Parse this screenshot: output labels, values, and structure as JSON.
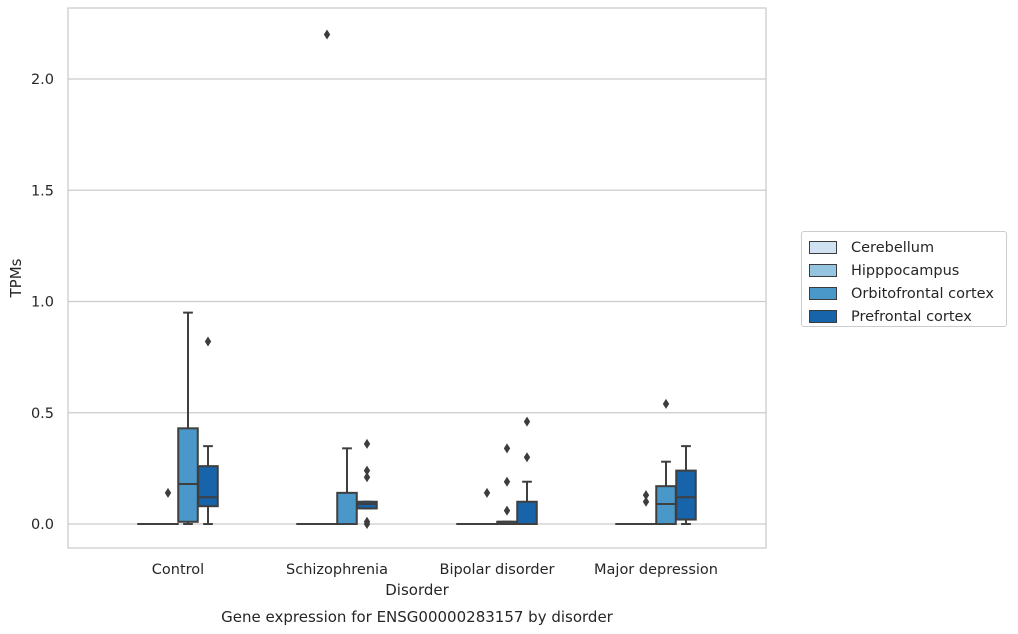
{
  "chart_data": {
    "type": "box",
    "title": "Gene expression for ENSG00000283157 by disorder",
    "xlabel": "Disorder",
    "ylabel": "TPMs",
    "ylim": [
      -0.11,
      2.33
    ],
    "yticks": [
      "0.0",
      "0.5",
      "1.0",
      "1.5",
      "2.0"
    ],
    "ytick_values": [
      0.0,
      0.5,
      1.0,
      1.5,
      2.0
    ],
    "grid": true,
    "legend_position": "right",
    "categories": [
      "Control",
      "Schizophrenia",
      "Bipolar disorder",
      "Major depression"
    ],
    "series": [
      {
        "name": "Cerebellum",
        "color": "#d0e1f2",
        "boxes": [
          {
            "min": 0.0,
            "q1": 0.0,
            "median": 0.0,
            "q3": 0.0,
            "max": 0.0,
            "outliers": []
          },
          {
            "min": 0.0,
            "q1": 0.0,
            "median": 0.0,
            "q3": 0.0,
            "max": 0.0,
            "outliers": []
          },
          {
            "min": 0.0,
            "q1": 0.0,
            "median": 0.0,
            "q3": 0.0,
            "max": 0.0,
            "outliers": []
          },
          {
            "min": 0.0,
            "q1": 0.0,
            "median": 0.0,
            "q3": 0.0,
            "max": 0.0,
            "outliers": []
          }
        ]
      },
      {
        "name": "Hipppocampus",
        "color": "#94c4df",
        "boxes": [
          {
            "min": 0.0,
            "q1": 0.0,
            "median": 0.0,
            "q3": 0.0,
            "max": 0.0,
            "outliers": [
              0.14
            ]
          },
          {
            "min": 0.0,
            "q1": 0.0,
            "median": 0.0,
            "q3": 0.0,
            "max": 0.0,
            "outliers": [
              2.2
            ]
          },
          {
            "min": 0.0,
            "q1": 0.0,
            "median": 0.0,
            "q3": 0.0,
            "max": 0.0,
            "outliers": [
              0.14
            ]
          },
          {
            "min": 0.0,
            "q1": 0.0,
            "median": 0.0,
            "q3": 0.0,
            "max": 0.0,
            "outliers": [
              0.1,
              0.13
            ]
          }
        ]
      },
      {
        "name": "Orbitofrontal cortex",
        "color": "#4a98c9",
        "boxes": [
          {
            "min": 0.0,
            "q1": 0.01,
            "median": 0.18,
            "q3": 0.43,
            "max": 0.95,
            "outliers": []
          },
          {
            "min": 0.0,
            "q1": 0.0,
            "median": 0.0,
            "q3": 0.14,
            "max": 0.34,
            "outliers": []
          },
          {
            "min": 0.0,
            "q1": 0.0,
            "median": 0.01,
            "q3": 0.01,
            "max": 0.01,
            "outliers": [
              0.06,
              0.19,
              0.34
            ]
          },
          {
            "min": 0.0,
            "q1": 0.0,
            "median": 0.09,
            "q3": 0.17,
            "max": 0.28,
            "outliers": [
              0.54
            ]
          }
        ]
      },
      {
        "name": "Prefrontal cortex",
        "color": "#1764ab",
        "boxes": [
          {
            "min": 0.0,
            "q1": 0.08,
            "median": 0.12,
            "q3": 0.26,
            "max": 0.35,
            "outliers": [
              0.82
            ]
          },
          {
            "min": 0.07,
            "q1": 0.07,
            "median": 0.09,
            "q3": 0.1,
            "max": 0.1,
            "outliers": [
              0.0,
              0.01,
              0.21,
              0.24,
              0.36
            ]
          },
          {
            "min": 0.0,
            "q1": 0.0,
            "median": 0.0,
            "q3": 0.1,
            "max": 0.19,
            "outliers": [
              0.3,
              0.46
            ]
          },
          {
            "min": 0.0,
            "q1": 0.02,
            "median": 0.12,
            "q3": 0.24,
            "max": 0.35,
            "outliers": []
          }
        ]
      }
    ]
  }
}
